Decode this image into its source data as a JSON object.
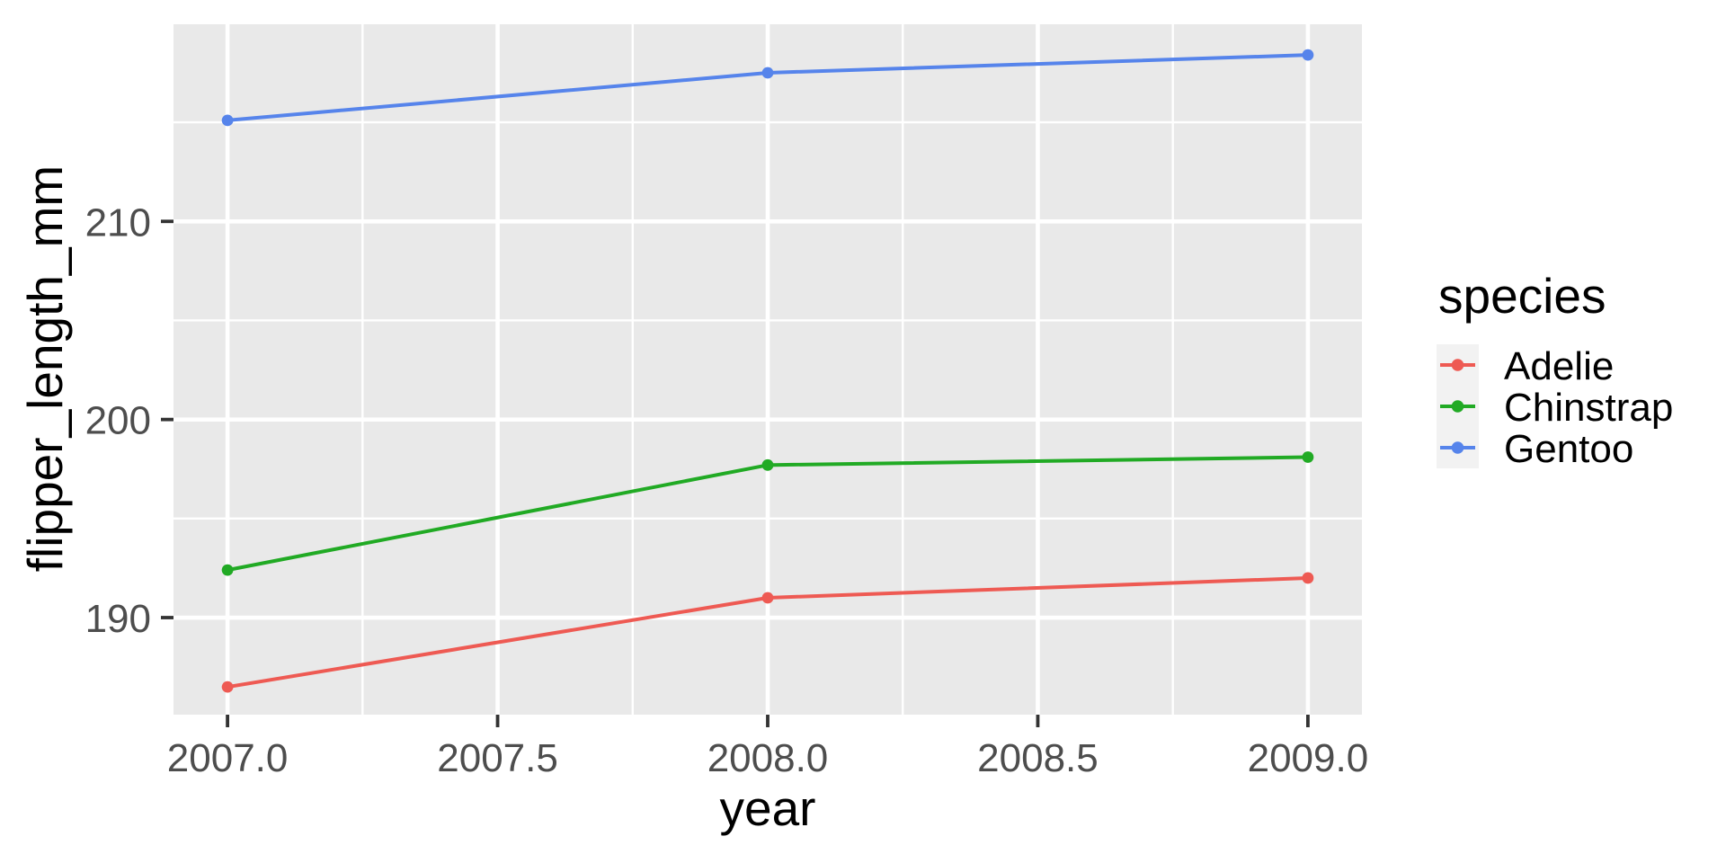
{
  "chart_data": {
    "type": "line",
    "x": [
      2007,
      2008,
      2009
    ],
    "series": [
      {
        "name": "Adelie",
        "color": "#EE5A53",
        "values": [
          186.5,
          191.0,
          192.0
        ]
      },
      {
        "name": "Chinstrap",
        "color": "#21AA24",
        "values": [
          192.4,
          197.7,
          198.1
        ]
      },
      {
        "name": "Gentoo",
        "color": "#5684EB",
        "values": [
          215.1,
          217.5,
          218.4
        ]
      }
    ],
    "xlabel": "year",
    "ylabel": "flipper_length_mm",
    "legend_title": "species",
    "x_ticks": {
      "values": [
        2007,
        2007.5,
        2008,
        2008.5,
        2009
      ],
      "labels": [
        "2007.0",
        "2007.5",
        "2008.0",
        "2008.5",
        "2009.0"
      ]
    },
    "y_ticks": {
      "values": [
        190,
        200,
        210
      ],
      "labels": [
        "190",
        "200",
        "210"
      ]
    },
    "x_minor": [
      2007.25,
      2007.75,
      2008.25,
      2008.75
    ],
    "y_minor": [
      195,
      205,
      215
    ],
    "xlim": [
      2006.9,
      2009.1
    ],
    "ylim": [
      185.1,
      219.95
    ],
    "grid": true,
    "legend_position": "right",
    "colors": {
      "panel_bg": "#E9E9E9",
      "grid": "#FFFFFF",
      "tick": "#333333",
      "tick_label": "#4D4D4D",
      "title": "#000000",
      "legend_key_bg": "#F2F2F2",
      "page_bg": "#FFFFFF"
    }
  }
}
